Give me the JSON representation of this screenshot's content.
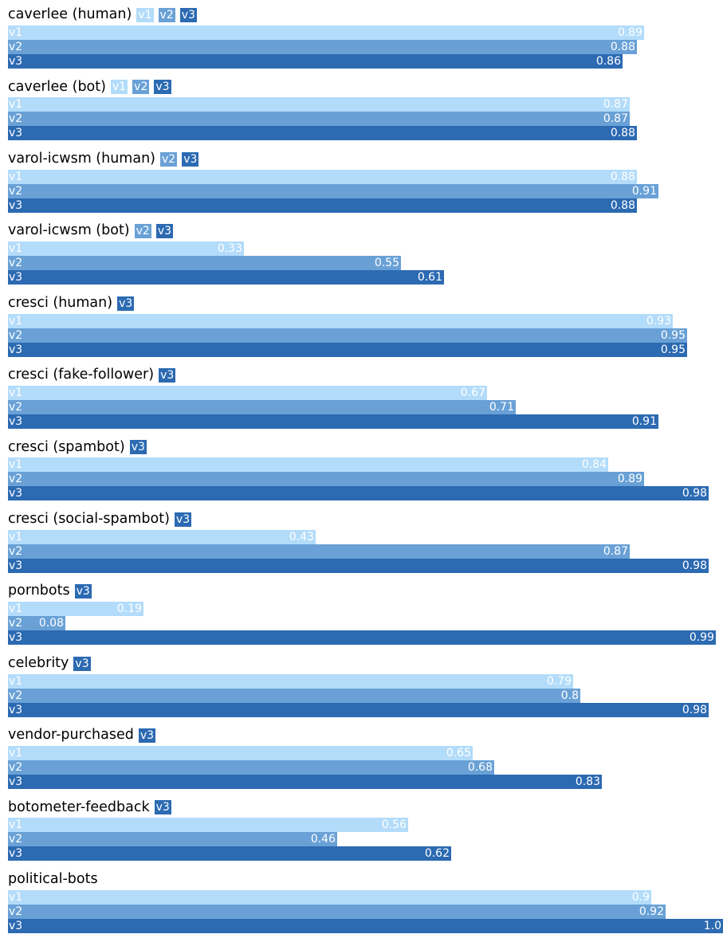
{
  "chart_data": {
    "type": "bar",
    "orientation": "horizontal",
    "xlim": [
      0,
      1.0
    ],
    "grid": false,
    "colors": {
      "v1": "#b3dcfa",
      "v2": "#69a1d6",
      "v3": "#2c6ab2"
    },
    "label_colors": {
      "v1": "#ffffff",
      "v2": "#ffffff",
      "v3": "#ffffff"
    },
    "groups": [
      {
        "title": "caverlee (human)",
        "versions": [
          "v1",
          "v2",
          "v3"
        ],
        "bars": [
          {
            "label": "v1",
            "value": 0.89,
            "text": "0.89"
          },
          {
            "label": "v2",
            "value": 0.88,
            "text": "0.88"
          },
          {
            "label": "v3",
            "value": 0.86,
            "text": "0.86"
          }
        ]
      },
      {
        "title": "caverlee (bot)",
        "versions": [
          "v1",
          "v2",
          "v3"
        ],
        "bars": [
          {
            "label": "v1",
            "value": 0.87,
            "text": "0.87"
          },
          {
            "label": "v2",
            "value": 0.87,
            "text": "0.87"
          },
          {
            "label": "v3",
            "value": 0.88,
            "text": "0.88"
          }
        ]
      },
      {
        "title": "varol-icwsm (human)",
        "versions": [
          "v2",
          "v3"
        ],
        "bars": [
          {
            "label": "v1",
            "value": 0.88,
            "text": "0.88"
          },
          {
            "label": "v2",
            "value": 0.91,
            "text": "0.91"
          },
          {
            "label": "v3",
            "value": 0.88,
            "text": "0.88"
          }
        ]
      },
      {
        "title": "varol-icwsm (bot)",
        "versions": [
          "v2",
          "v3"
        ],
        "bars": [
          {
            "label": "v1",
            "value": 0.33,
            "text": "0.33"
          },
          {
            "label": "v2",
            "value": 0.55,
            "text": "0.55"
          },
          {
            "label": "v3",
            "value": 0.61,
            "text": "0.61"
          }
        ]
      },
      {
        "title": "cresci (human)",
        "versions": [
          "v3"
        ],
        "bars": [
          {
            "label": "v1",
            "value": 0.93,
            "text": "0.93"
          },
          {
            "label": "v2",
            "value": 0.95,
            "text": "0.95"
          },
          {
            "label": "v3",
            "value": 0.95,
            "text": "0.95"
          }
        ]
      },
      {
        "title": "cresci (fake-follower)",
        "versions": [
          "v3"
        ],
        "bars": [
          {
            "label": "v1",
            "value": 0.67,
            "text": "0.67"
          },
          {
            "label": "v2",
            "value": 0.71,
            "text": "0.71"
          },
          {
            "label": "v3",
            "value": 0.91,
            "text": "0.91"
          }
        ]
      },
      {
        "title": "cresci (spambot)",
        "versions": [
          "v3"
        ],
        "bars": [
          {
            "label": "v1",
            "value": 0.84,
            "text": "0.84"
          },
          {
            "label": "v2",
            "value": 0.89,
            "text": "0.89"
          },
          {
            "label": "v3",
            "value": 0.98,
            "text": "0.98"
          }
        ]
      },
      {
        "title": "cresci (social-spambot)",
        "versions": [
          "v3"
        ],
        "bars": [
          {
            "label": "v1",
            "value": 0.43,
            "text": "0.43"
          },
          {
            "label": "v2",
            "value": 0.87,
            "text": "0.87"
          },
          {
            "label": "v3",
            "value": 0.98,
            "text": "0.98"
          }
        ]
      },
      {
        "title": "pornbots",
        "versions": [
          "v3"
        ],
        "bars": [
          {
            "label": "v1",
            "value": 0.19,
            "text": "0.19"
          },
          {
            "label": "v2",
            "value": 0.08,
            "text": "0.08"
          },
          {
            "label": "v3",
            "value": 0.99,
            "text": "0.99"
          }
        ]
      },
      {
        "title": "celebrity",
        "versions": [
          "v3"
        ],
        "bars": [
          {
            "label": "v1",
            "value": 0.79,
            "text": "0.79"
          },
          {
            "label": "v2",
            "value": 0.8,
            "text": "0.8"
          },
          {
            "label": "v3",
            "value": 0.98,
            "text": "0.98"
          }
        ]
      },
      {
        "title": "vendor-purchased",
        "versions": [
          "v3"
        ],
        "bars": [
          {
            "label": "v1",
            "value": 0.65,
            "text": "0.65"
          },
          {
            "label": "v2",
            "value": 0.68,
            "text": "0.68"
          },
          {
            "label": "v3",
            "value": 0.83,
            "text": "0.83"
          }
        ]
      },
      {
        "title": "botometer-feedback",
        "versions": [
          "v3"
        ],
        "bars": [
          {
            "label": "v1",
            "value": 0.56,
            "text": "0.56"
          },
          {
            "label": "v2",
            "value": 0.46,
            "text": "0.46"
          },
          {
            "label": "v3",
            "value": 0.62,
            "text": "0.62"
          }
        ]
      },
      {
        "title": "political-bots",
        "versions": [],
        "bars": [
          {
            "label": "v1",
            "value": 0.9,
            "text": "0.9"
          },
          {
            "label": "v2",
            "value": 0.92,
            "text": "0.92"
          },
          {
            "label": "v3",
            "value": 1.0,
            "text": "1.0"
          }
        ]
      }
    ]
  }
}
